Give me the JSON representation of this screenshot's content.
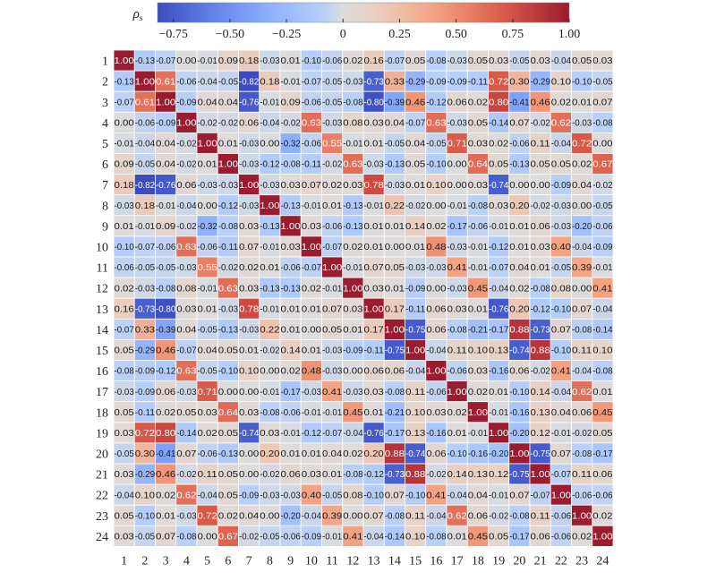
{
  "chart_data": {
    "type": "heatmap",
    "title": "",
    "colorbar": {
      "label": "ρ",
      "label_subscript": "s",
      "range": [
        -0.82,
        1.0
      ],
      "ticks": [
        -0.75,
        -0.5,
        -0.25,
        0,
        0.25,
        0.5,
        0.75,
        1.0
      ],
      "tick_labels": [
        "−0.75",
        "−0.50",
        "−0.25",
        "0",
        "0.25",
        "0.50",
        "0.75",
        "1.00"
      ],
      "placement": "top",
      "colormap": "coolwarm",
      "colors": {
        "low": "#3b4cc0",
        "mid": "#dddcdc",
        "high": "#9b1b2f"
      }
    },
    "x_labels": [
      "1",
      "2",
      "3",
      "4",
      "5",
      "6",
      "7",
      "8",
      "9",
      "10",
      "11",
      "12",
      "13",
      "14",
      "15",
      "16",
      "17",
      "18",
      "19",
      "20",
      "21",
      "22",
      "23",
      "24"
    ],
    "y_labels": [
      "1",
      "2",
      "3",
      "4",
      "5",
      "6",
      "7",
      "8",
      "9",
      "10",
      "11",
      "12",
      "13",
      "14",
      "15",
      "16",
      "17",
      "18",
      "19",
      "20",
      "21",
      "22",
      "23",
      "24"
    ],
    "values": [
      [
        1.0,
        -0.13,
        -0.07,
        0.0,
        -0.01,
        0.09,
        0.18,
        -0.03,
        0.01,
        -0.1,
        -0.06,
        0.02,
        0.16,
        -0.07,
        0.05,
        -0.08,
        -0.03,
        0.05,
        0.03,
        -0.05,
        0.03,
        -0.04,
        0.05,
        0.03
      ],
      [
        -0.13,
        1.0,
        0.61,
        -0.06,
        -0.04,
        -0.05,
        -0.82,
        0.18,
        -0.01,
        -0.07,
        -0.05,
        -0.03,
        -0.73,
        0.33,
        -0.29,
        -0.09,
        -0.09,
        -0.11,
        0.72,
        0.3,
        -0.29,
        0.1,
        -0.1,
        -0.05
      ],
      [
        -0.07,
        0.61,
        1.0,
        -0.09,
        0.04,
        0.04,
        -0.76,
        -0.01,
        0.09,
        -0.06,
        -0.05,
        -0.08,
        -0.8,
        -0.39,
        0.46,
        -0.12,
        0.06,
        0.02,
        0.8,
        -0.41,
        0.46,
        0.02,
        0.01,
        0.07
      ],
      [
        0.0,
        -0.06,
        -0.09,
        1.0,
        -0.02,
        -0.02,
        0.06,
        -0.04,
        -0.02,
        0.63,
        -0.03,
        0.08,
        0.03,
        0.04,
        -0.07,
        0.63,
        -0.03,
        0.05,
        -0.14,
        0.07,
        -0.02,
        0.62,
        -0.03,
        -0.08
      ],
      [
        -0.01,
        -0.04,
        0.04,
        -0.02,
        1.0,
        0.01,
        -0.03,
        0.0,
        -0.32,
        -0.06,
        0.55,
        -0.01,
        0.01,
        -0.05,
        0.04,
        -0.05,
        0.71,
        0.03,
        0.02,
        -0.06,
        0.11,
        -0.04,
        0.72,
        0.0
      ],
      [
        0.09,
        -0.05,
        0.04,
        -0.02,
        0.01,
        1.0,
        -0.03,
        -0.12,
        -0.08,
        -0.11,
        -0.02,
        0.63,
        -0.03,
        -0.13,
        0.05,
        -0.1,
        -0.0,
        0.64,
        0.05,
        -0.13,
        0.05,
        0.05,
        0.02,
        0.67
      ],
      [
        0.18,
        -0.82,
        -0.76,
        0.06,
        -0.03,
        -0.03,
        1.0,
        -0.03,
        0.03,
        0.07,
        0.02,
        0.03,
        0.78,
        -0.03,
        0.01,
        0.1,
        -0.0,
        0.03,
        -0.74,
        0.0,
        -0.0,
        -0.09,
        0.04,
        -0.02
      ],
      [
        -0.03,
        0.18,
        -0.01,
        -0.04,
        0.0,
        -0.12,
        -0.03,
        1.0,
        -0.13,
        -0.01,
        0.01,
        -0.13,
        -0.01,
        0.22,
        -0.02,
        -0.0,
        -0.01,
        -0.08,
        0.03,
        0.2,
        -0.02,
        -0.03,
        -0.0,
        -0.05
      ],
      [
        0.01,
        -0.01,
        0.09,
        -0.02,
        -0.32,
        -0.08,
        0.03,
        -0.13,
        1.0,
        0.03,
        -0.06,
        -0.13,
        0.01,
        0.01,
        0.14,
        0.02,
        -0.17,
        -0.06,
        -0.01,
        0.01,
        0.06,
        -0.03,
        -0.2,
        -0.06
      ],
      [
        -0.1,
        -0.07,
        -0.06,
        0.63,
        -0.06,
        -0.11,
        0.07,
        -0.01,
        0.03,
        1.0,
        -0.07,
        0.02,
        0.01,
        -0.0,
        0.01,
        0.48,
        -0.03,
        -0.01,
        -0.12,
        0.01,
        0.03,
        0.4,
        -0.04,
        -0.09
      ],
      [
        -0.06,
        -0.05,
        -0.05,
        -0.03,
        0.55,
        -0.02,
        0.02,
        0.01,
        -0.06,
        -0.07,
        1.0,
        -0.01,
        0.07,
        0.05,
        -0.03,
        -0.03,
        0.41,
        -0.01,
        -0.07,
        0.04,
        0.01,
        -0.05,
        0.39,
        -0.01
      ],
      [
        0.02,
        -0.03,
        -0.08,
        0.08,
        -0.01,
        0.63,
        0.03,
        -0.13,
        -0.13,
        0.02,
        -0.01,
        1.0,
        0.03,
        0.01,
        -0.09,
        0.0,
        -0.03,
        0.45,
        -0.04,
        0.02,
        -0.08,
        0.08,
        -0.0,
        0.41
      ],
      [
        0.16,
        -0.73,
        -0.8,
        0.03,
        0.01,
        -0.03,
        0.78,
        -0.01,
        0.01,
        0.01,
        0.07,
        0.03,
        1.0,
        0.17,
        -0.11,
        0.06,
        0.03,
        0.01,
        -0.76,
        0.2,
        -0.12,
        -0.1,
        0.07,
        -0.04
      ],
      [
        -0.07,
        0.33,
        -0.39,
        0.04,
        -0.05,
        -0.13,
        -0.03,
        0.22,
        0.01,
        -0.0,
        0.05,
        0.01,
        0.17,
        1.0,
        -0.75,
        0.06,
        -0.08,
        -0.21,
        -0.17,
        0.88,
        -0.73,
        0.07,
        -0.08,
        -0.14
      ],
      [
        0.05,
        -0.29,
        0.46,
        -0.07,
        0.04,
        0.05,
        0.01,
        -0.02,
        0.14,
        0.01,
        -0.03,
        -0.09,
        -0.11,
        -0.75,
        1.0,
        -0.04,
        0.11,
        0.1,
        0.13,
        -0.74,
        0.88,
        -0.1,
        0.11,
        0.1
      ],
      [
        -0.08,
        -0.09,
        -0.12,
        0.63,
        -0.05,
        -0.1,
        0.1,
        -0.0,
        0.02,
        0.48,
        -0.03,
        0.0,
        0.06,
        0.06,
        -0.04,
        1.0,
        -0.06,
        0.03,
        -0.16,
        0.06,
        -0.02,
        0.41,
        -0.04,
        -0.08
      ],
      [
        -0.03,
        -0.09,
        0.06,
        -0.03,
        0.71,
        -0.0,
        -0.0,
        -0.01,
        -0.17,
        -0.03,
        0.41,
        -0.03,
        0.03,
        -0.08,
        0.11,
        -0.06,
        1.0,
        0.02,
        0.01,
        -0.1,
        0.14,
        -0.04,
        0.62,
        0.01
      ],
      [
        0.05,
        -0.11,
        0.02,
        0.05,
        0.03,
        0.64,
        0.03,
        -0.08,
        -0.06,
        -0.01,
        -0.01,
        0.45,
        0.01,
        -0.21,
        0.1,
        0.03,
        0.02,
        1.0,
        -0.01,
        -0.16,
        0.13,
        0.04,
        0.06,
        0.45
      ],
      [
        0.03,
        0.72,
        0.8,
        -0.14,
        0.02,
        0.05,
        -0.74,
        0.03,
        -0.01,
        -0.12,
        -0.07,
        -0.04,
        -0.76,
        -0.17,
        0.13,
        -0.16,
        0.01,
        -0.01,
        1.0,
        -0.2,
        0.12,
        -0.01,
        -0.02,
        0.05
      ],
      [
        -0.05,
        0.3,
        -0.41,
        0.07,
        -0.06,
        -0.13,
        0.0,
        0.2,
        0.01,
        0.01,
        0.04,
        0.02,
        0.2,
        0.88,
        -0.74,
        0.06,
        -0.1,
        -0.16,
        -0.2,
        1.0,
        -0.75,
        0.07,
        -0.08,
        -0.17
      ],
      [
        0.03,
        -0.29,
        0.46,
        -0.02,
        0.11,
        0.05,
        -0.0,
        -0.02,
        0.06,
        0.03,
        0.01,
        -0.08,
        -0.12,
        -0.73,
        0.88,
        -0.02,
        0.14,
        0.13,
        0.12,
        -0.75,
        1.0,
        -0.07,
        0.11,
        0.06
      ],
      [
        -0.04,
        0.1,
        0.02,
        0.62,
        -0.04,
        0.05,
        -0.09,
        -0.03,
        -0.03,
        0.4,
        -0.05,
        0.08,
        -0.1,
        0.07,
        -0.1,
        0.41,
        -0.04,
        0.04,
        -0.01,
        0.07,
        -0.07,
        1.0,
        -0.06,
        -0.06
      ],
      [
        0.05,
        -0.1,
        0.01,
        -0.03,
        0.72,
        0.02,
        0.04,
        -0.0,
        -0.2,
        -0.04,
        0.39,
        -0.0,
        0.07,
        -0.08,
        0.11,
        -0.04,
        0.62,
        0.06,
        -0.02,
        -0.08,
        0.11,
        -0.06,
        1.0,
        0.02
      ],
      [
        0.03,
        -0.05,
        0.07,
        -0.08,
        0.0,
        0.67,
        -0.02,
        -0.05,
        -0.06,
        -0.09,
        -0.01,
        0.41,
        -0.04,
        -0.14,
        0.1,
        -0.08,
        0.01,
        0.45,
        0.05,
        -0.17,
        0.06,
        -0.06,
        0.02,
        1.0
      ]
    ],
    "value_format": "2-decimal",
    "grid": true
  }
}
